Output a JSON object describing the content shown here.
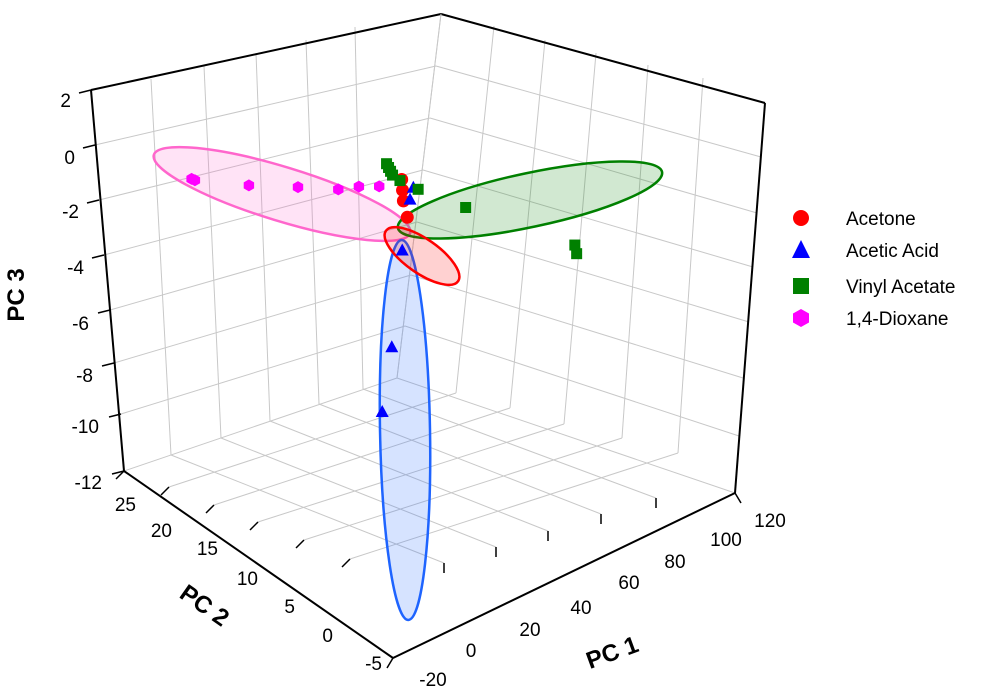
{
  "chart_data": {
    "type": "scatter",
    "projection": "3d",
    "axes": {
      "x": {
        "label": "PC 1",
        "range": [
          -20,
          120
        ],
        "ticks": [
          "-20",
          "0",
          "20",
          "40",
          "60",
          "80",
          "100",
          "120"
        ]
      },
      "y": {
        "label": "PC 2",
        "range": [
          -5,
          25
        ],
        "ticks": [
          "-5",
          "0",
          "5",
          "10",
          "15",
          "20",
          "25"
        ]
      },
      "z": {
        "label": "PC 3",
        "range": [
          -12,
          2
        ],
        "ticks": [
          "-12",
          "-10",
          "-8",
          "-6",
          "-4",
          "-2",
          "0",
          "2"
        ]
      }
    },
    "grid": true,
    "legend_position": "right",
    "series": [
      {
        "name": "Acetone",
        "marker": "circle",
        "color": "#ff0000",
        "points": [
          [
            -4,
            2.2,
            -3.0
          ],
          [
            -2,
            2.6,
            -3.3
          ],
          [
            0,
            3.0,
            -3.6
          ],
          [
            3,
            3.3,
            -4.1
          ]
        ]
      },
      {
        "name": "Acetic Acid",
        "marker": "triangle",
        "color": "#0000ff",
        "points": [
          [
            -7,
            -0.2,
            -3.7
          ],
          [
            -8,
            -0.3,
            -4.2
          ],
          [
            -9,
            -0.4,
            -6.2
          ],
          [
            -10,
            -0.8,
            -10.0
          ],
          [
            -12,
            -1.2,
            -12.6
          ]
        ]
      },
      {
        "name": "Vinyl Acetate",
        "marker": "square",
        "color": "#008000",
        "points": [
          [
            -6,
            3.5,
            -2.3
          ],
          [
            -2,
            4.5,
            -2.2
          ],
          [
            2,
            5.5,
            -2.1
          ],
          [
            6,
            6.5,
            -2.0
          ],
          [
            12,
            7.5,
            -1.9
          ],
          [
            22,
            8.5,
            -1.8
          ],
          [
            46,
            10.5,
            -1.5
          ],
          [
            96,
            13.5,
            -1.0
          ],
          [
            97,
            13.5,
            -1.3
          ]
        ]
      },
      {
        "name": "1,4-Dioxane",
        "marker": "hexagon",
        "color": "#ff00ff",
        "points": [
          [
            -11,
            24.0,
            -0.6
          ],
          [
            -11,
            23.6,
            -0.7
          ],
          [
            -9,
            18.0,
            -1.5
          ],
          [
            -7,
            13.0,
            -2.1
          ],
          [
            -5,
            9.0,
            -2.6
          ],
          [
            -4,
            7.0,
            -2.7
          ],
          [
            -3,
            5.0,
            -2.9
          ]
        ]
      }
    ]
  },
  "colors": {
    "acetone_ellipse": "#ff0000",
    "acetic_acid_ellipse": "#1e64ff",
    "vinyl_acetate_ellipse": "#008000",
    "dioxane_ellipse": "#ff66cc"
  }
}
